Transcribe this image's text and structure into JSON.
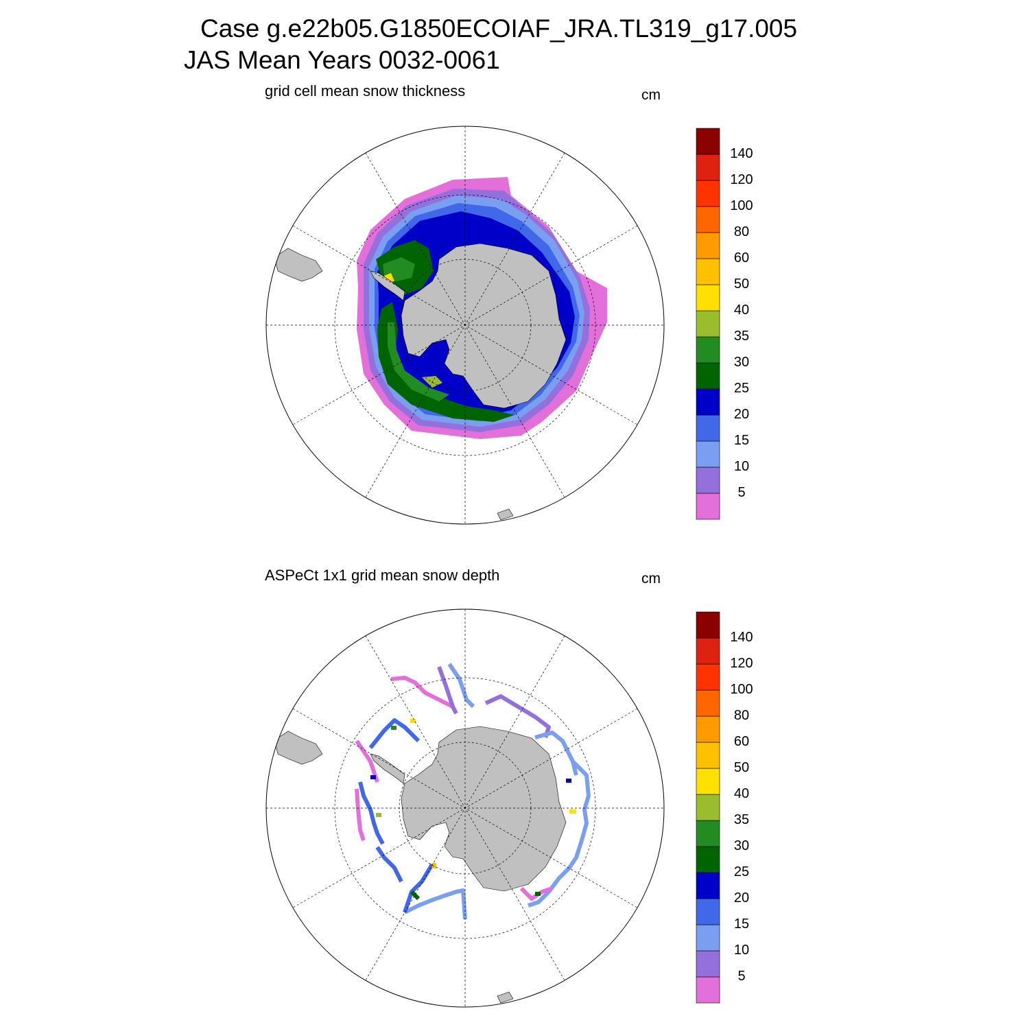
{
  "title": {
    "line1": "Case g.e22b05.G1850ECOIAF_JRA.TL319_g17.005",
    "line2": "JAS Mean   Years 0032-0061"
  },
  "panels": [
    {
      "label": "grid cell mean snow thickness",
      "unit": "cm"
    },
    {
      "label": "ASPeCt 1x1 grid mean snow depth",
      "unit": "cm"
    }
  ],
  "colorbar": {
    "levels": [
      "5",
      "10",
      "15",
      "20",
      "25",
      "30",
      "35",
      "40",
      "50",
      "60",
      "80",
      "100",
      "120",
      "140"
    ],
    "colors": [
      "#e36fdb",
      "#9370db",
      "#7b9ff0",
      "#4068e8",
      "#0000c8",
      "#006400",
      "#228b22",
      "#9abd2e",
      "#ffe000",
      "#ffc000",
      "#ff9a00",
      "#ff6600",
      "#ff3300",
      "#dd2211",
      "#8b0000"
    ]
  },
  "map_style": {
    "land_color": "#c0c0c0",
    "ocean_color": "#ffffff",
    "grid_line": "dashed"
  }
}
